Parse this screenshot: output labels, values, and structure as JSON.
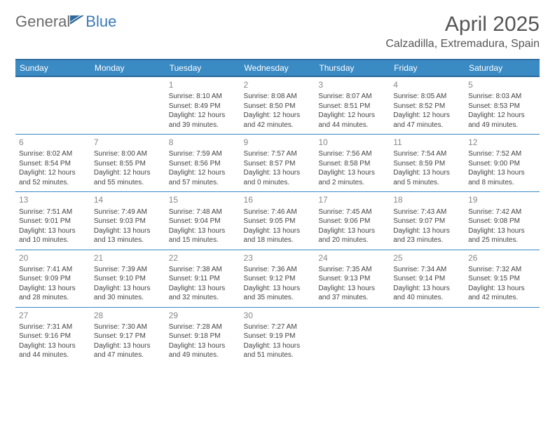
{
  "brand": {
    "part1": "General",
    "part2": "Blue"
  },
  "title": "April 2025",
  "location": "Calzadilla, Extremadura, Spain",
  "colors": {
    "header_bg": "#3a8ac4",
    "header_border": "#2e6a9e",
    "row_border": "#3a8ac4",
    "text": "#444444",
    "daynum": "#888888",
    "title": "#555555",
    "brand_gray": "#6b6b6b",
    "brand_blue": "#3a7ab8",
    "background": "#ffffff"
  },
  "typography": {
    "title_fontsize": 30,
    "location_fontsize": 16,
    "header_fontsize": 12,
    "daynum_fontsize": 12,
    "body_fontsize": 10
  },
  "calendar": {
    "columns": [
      "Sunday",
      "Monday",
      "Tuesday",
      "Wednesday",
      "Thursday",
      "Friday",
      "Saturday"
    ],
    "weeks": [
      [
        null,
        null,
        {
          "day": "1",
          "sunrise": "8:10 AM",
          "sunset": "8:49 PM",
          "daylight": "12 hours and 39 minutes."
        },
        {
          "day": "2",
          "sunrise": "8:08 AM",
          "sunset": "8:50 PM",
          "daylight": "12 hours and 42 minutes."
        },
        {
          "day": "3",
          "sunrise": "8:07 AM",
          "sunset": "8:51 PM",
          "daylight": "12 hours and 44 minutes."
        },
        {
          "day": "4",
          "sunrise": "8:05 AM",
          "sunset": "8:52 PM",
          "daylight": "12 hours and 47 minutes."
        },
        {
          "day": "5",
          "sunrise": "8:03 AM",
          "sunset": "8:53 PM",
          "daylight": "12 hours and 49 minutes."
        }
      ],
      [
        {
          "day": "6",
          "sunrise": "8:02 AM",
          "sunset": "8:54 PM",
          "daylight": "12 hours and 52 minutes."
        },
        {
          "day": "7",
          "sunrise": "8:00 AM",
          "sunset": "8:55 PM",
          "daylight": "12 hours and 55 minutes."
        },
        {
          "day": "8",
          "sunrise": "7:59 AM",
          "sunset": "8:56 PM",
          "daylight": "12 hours and 57 minutes."
        },
        {
          "day": "9",
          "sunrise": "7:57 AM",
          "sunset": "8:57 PM",
          "daylight": "13 hours and 0 minutes."
        },
        {
          "day": "10",
          "sunrise": "7:56 AM",
          "sunset": "8:58 PM",
          "daylight": "13 hours and 2 minutes."
        },
        {
          "day": "11",
          "sunrise": "7:54 AM",
          "sunset": "8:59 PM",
          "daylight": "13 hours and 5 minutes."
        },
        {
          "day": "12",
          "sunrise": "7:52 AM",
          "sunset": "9:00 PM",
          "daylight": "13 hours and 8 minutes."
        }
      ],
      [
        {
          "day": "13",
          "sunrise": "7:51 AM",
          "sunset": "9:01 PM",
          "daylight": "13 hours and 10 minutes."
        },
        {
          "day": "14",
          "sunrise": "7:49 AM",
          "sunset": "9:03 PM",
          "daylight": "13 hours and 13 minutes."
        },
        {
          "day": "15",
          "sunrise": "7:48 AM",
          "sunset": "9:04 PM",
          "daylight": "13 hours and 15 minutes."
        },
        {
          "day": "16",
          "sunrise": "7:46 AM",
          "sunset": "9:05 PM",
          "daylight": "13 hours and 18 minutes."
        },
        {
          "day": "17",
          "sunrise": "7:45 AM",
          "sunset": "9:06 PM",
          "daylight": "13 hours and 20 minutes."
        },
        {
          "day": "18",
          "sunrise": "7:43 AM",
          "sunset": "9:07 PM",
          "daylight": "13 hours and 23 minutes."
        },
        {
          "day": "19",
          "sunrise": "7:42 AM",
          "sunset": "9:08 PM",
          "daylight": "13 hours and 25 minutes."
        }
      ],
      [
        {
          "day": "20",
          "sunrise": "7:41 AM",
          "sunset": "9:09 PM",
          "daylight": "13 hours and 28 minutes."
        },
        {
          "day": "21",
          "sunrise": "7:39 AM",
          "sunset": "9:10 PM",
          "daylight": "13 hours and 30 minutes."
        },
        {
          "day": "22",
          "sunrise": "7:38 AM",
          "sunset": "9:11 PM",
          "daylight": "13 hours and 32 minutes."
        },
        {
          "day": "23",
          "sunrise": "7:36 AM",
          "sunset": "9:12 PM",
          "daylight": "13 hours and 35 minutes."
        },
        {
          "day": "24",
          "sunrise": "7:35 AM",
          "sunset": "9:13 PM",
          "daylight": "13 hours and 37 minutes."
        },
        {
          "day": "25",
          "sunrise": "7:34 AM",
          "sunset": "9:14 PM",
          "daylight": "13 hours and 40 minutes."
        },
        {
          "day": "26",
          "sunrise": "7:32 AM",
          "sunset": "9:15 PM",
          "daylight": "13 hours and 42 minutes."
        }
      ],
      [
        {
          "day": "27",
          "sunrise": "7:31 AM",
          "sunset": "9:16 PM",
          "daylight": "13 hours and 44 minutes."
        },
        {
          "day": "28",
          "sunrise": "7:30 AM",
          "sunset": "9:17 PM",
          "daylight": "13 hours and 47 minutes."
        },
        {
          "day": "29",
          "sunrise": "7:28 AM",
          "sunset": "9:18 PM",
          "daylight": "13 hours and 49 minutes."
        },
        {
          "day": "30",
          "sunrise": "7:27 AM",
          "sunset": "9:19 PM",
          "daylight": "13 hours and 51 minutes."
        },
        null,
        null,
        null
      ]
    ],
    "labels": {
      "sunrise": "Sunrise:",
      "sunset": "Sunset:",
      "daylight": "Daylight:"
    }
  }
}
